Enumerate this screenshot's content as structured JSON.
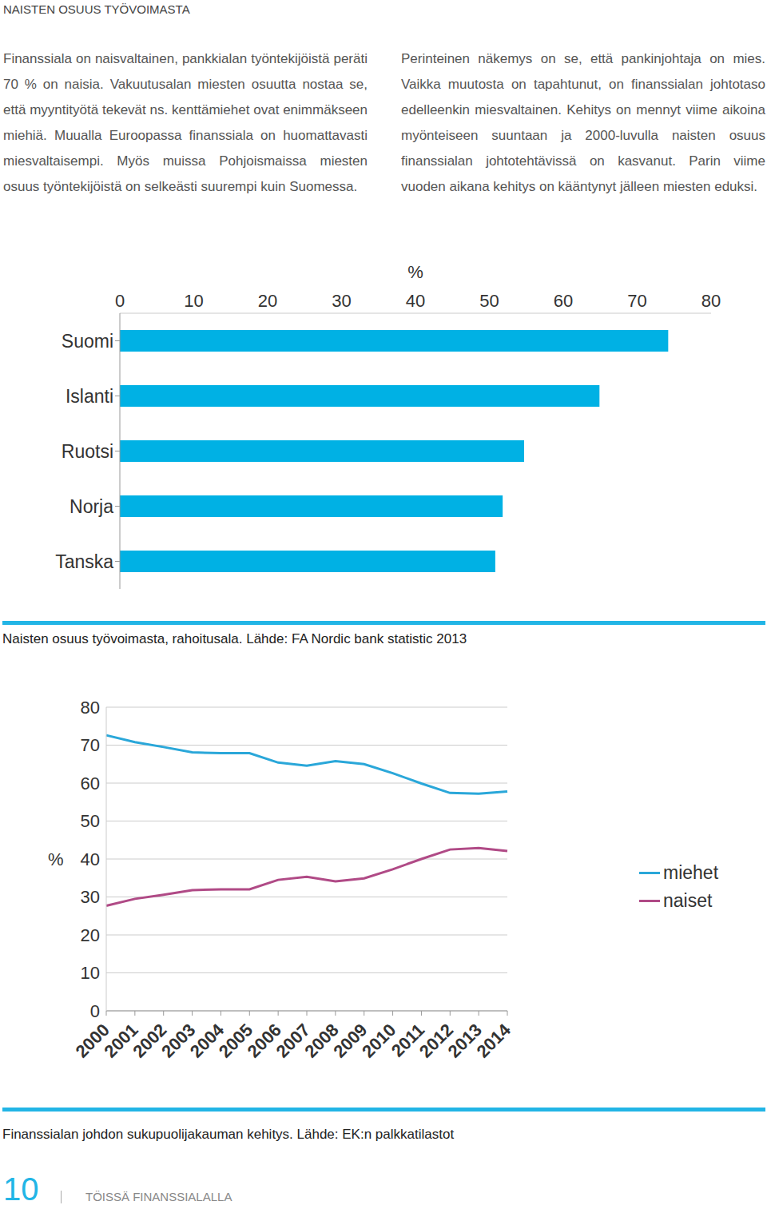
{
  "header": {
    "title": "NAISTEN OSUUS TYÖVOIMASTA"
  },
  "paragraphs": [
    "Finanssiala on naisvaltainen, pankkialan työntekijöistä peräti 70 % on naisia. Vakuutusalan miesten osuutta nostaa se, että myyntityötä tekevät ns. kenttämiehet ovat enimmäkseen miehiä. Muualla Euroopassa finanssiala on huomattavasti miesvaltaisempi. Myös muissa Pohjoismaissa miesten osuus työntekijöistä on selkeästi suurempi kuin Suomessa.",
    "Perinteinen näkemys on se, että pankinjohtaja on mies. Vaikka muutosta on tapahtunut, on finanssialan johtotaso edelleenkin miesvaltainen. Kehitys on mennyt viime aikoina myönteiseen suuntaan ja 2000-luvulla naisten osuus finanssialan johtotehtävissä on kasvanut. Parin viime vuoden aikana kehitys on kääntynyt jälleen miesten eduksi."
  ],
  "chart_data": [
    {
      "type": "bar",
      "orientation": "horizontal",
      "categories": [
        "Suomi",
        "Islanti",
        "Ruotsi",
        "Norja",
        "Tanska"
      ],
      "values": [
        74.2,
        64.9,
        54.7,
        51.8,
        50.8
      ],
      "color": "#00b1e4",
      "xlim": [
        0,
        80
      ],
      "xticks": [
        0,
        10,
        20,
        30,
        40,
        50,
        60,
        70,
        80
      ],
      "x_label": "%",
      "grid": false,
      "caption": "Naisten osuus työvoimasta, rahoitusala. Lähde: FA Nordic bank statistic 2013"
    },
    {
      "type": "line",
      "categories": [
        "2000",
        "2001",
        "2002",
        "2003",
        "2004",
        "2005",
        "2006",
        "2007",
        "2008",
        "2009",
        "2010",
        "2011",
        "2012",
        "2013",
        "2014"
      ],
      "series": [
        {
          "name": "miehet",
          "color": "#2aa7d9",
          "values": [
            72.6,
            70.8,
            69.5,
            68.1,
            67.9,
            67.9,
            65.4,
            64.6,
            65.8,
            65.0,
            62.6,
            59.9,
            57.4,
            57.2,
            57.8
          ]
        },
        {
          "name": "naiset",
          "color": "#b04a86",
          "values": [
            27.7,
            29.5,
            30.6,
            31.8,
            32.0,
            32.0,
            34.5,
            35.3,
            34.1,
            34.9,
            37.3,
            40.0,
            42.5,
            42.9,
            42.1
          ]
        }
      ],
      "ylim": [
        0,
        80
      ],
      "yticks": [
        0,
        10,
        20,
        30,
        40,
        50,
        60,
        70,
        80
      ],
      "y_label": "%",
      "grid": true,
      "legend": "right",
      "caption": "Finanssialan johdon sukupuolijakauman kehitys. Lähde: EK:n palkkatilastot"
    }
  ],
  "footer": {
    "page": "10",
    "title": "TÖISSÄ FINANSSIALALLA"
  }
}
